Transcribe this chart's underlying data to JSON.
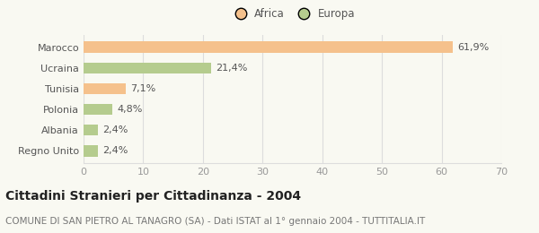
{
  "categories": [
    "Marocco",
    "Ucraina",
    "Tunisia",
    "Polonia",
    "Albania",
    "Regno Unito"
  ],
  "values": [
    61.9,
    21.4,
    7.1,
    4.8,
    2.4,
    2.4
  ],
  "labels": [
    "61,9%",
    "21,4%",
    "7,1%",
    "4,8%",
    "2,4%",
    "2,4%"
  ],
  "colors": [
    "#f5c18c",
    "#b5cc8e",
    "#f5c18c",
    "#b5cc8e",
    "#b5cc8e",
    "#b5cc8e"
  ],
  "legend_items": [
    {
      "label": "Africa",
      "color": "#f5c18c"
    },
    {
      "label": "Europa",
      "color": "#b5cc8e"
    }
  ],
  "xlim": [
    0,
    70
  ],
  "xticks": [
    0,
    10,
    20,
    30,
    40,
    50,
    60,
    70
  ],
  "title": "Cittadini Stranieri per Cittadinanza - 2004",
  "subtitle": "COMUNE DI SAN PIETRO AL TANAGRO (SA) - Dati ISTAT al 1° gennaio 2004 - TUTTITALIA.IT",
  "background_color": "#f9f9f2",
  "grid_color": "#dddddd",
  "bar_height": 0.55,
  "label_fontsize": 8,
  "tick_fontsize": 8,
  "ytick_fontsize": 8,
  "title_fontsize": 10,
  "subtitle_fontsize": 7.5
}
